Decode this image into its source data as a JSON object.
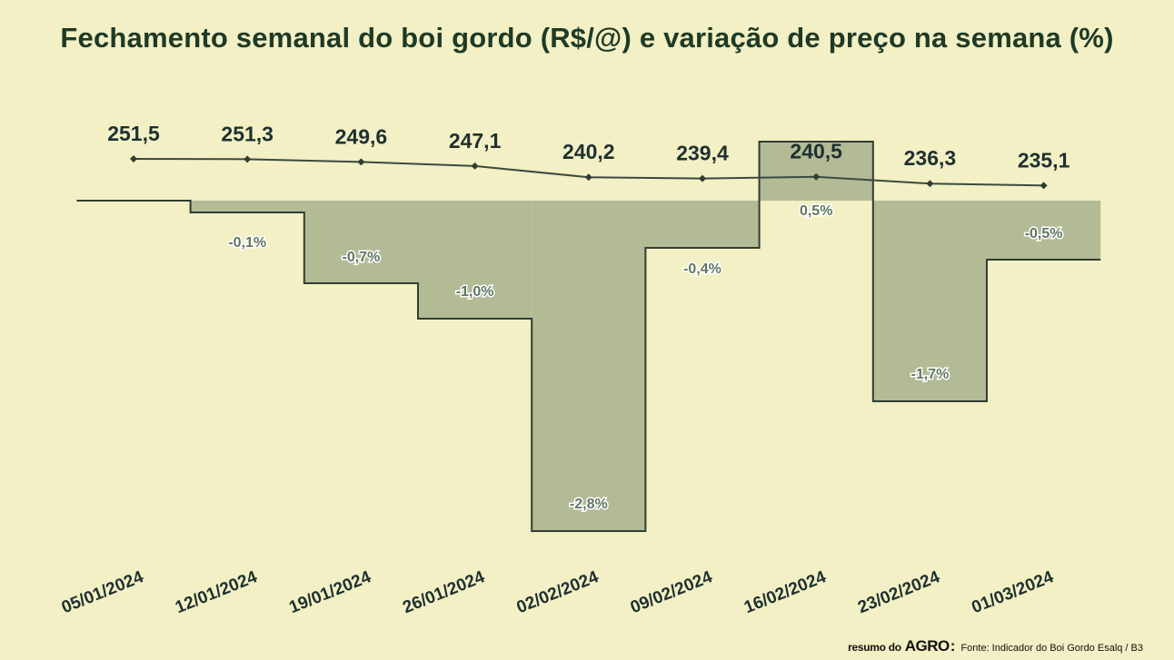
{
  "title": "Fechamento semanal do boi gordo (R$/@) e variação de preço na semana (%)",
  "footer": {
    "brand_small": "resumo do",
    "brand_big": "AGRO",
    "brand_colon": ":",
    "source": "Fonte: Indicador do Boi Gordo Esalq / B3"
  },
  "colors": {
    "background": "#f2f0c4",
    "variation_fill": "#b3ba96",
    "line": "#3a4a40",
    "outline": "#2f3d34"
  },
  "chart_data": {
    "type": "line",
    "categories": [
      "05/01/2024",
      "12/01/2024",
      "19/01/2024",
      "26/01/2024",
      "02/02/2024",
      "09/02/2024",
      "16/02/2024",
      "23/02/2024",
      "01/03/2024"
    ],
    "series": [
      {
        "type": "line",
        "values": [
          251.5,
          251.3,
          249.6,
          247.1,
          240.2,
          239.4,
          240.5,
          236.3,
          235.1
        ],
        "labels": [
          "251,5",
          "251,3",
          "249,6",
          "247,1",
          "240,2",
          "239,4",
          "240,5",
          "236,3",
          "235,1"
        ]
      },
      {
        "type": "step-area",
        "values": [
          0.0,
          -0.1,
          -0.7,
          -1.0,
          -2.8,
          -0.4,
          0.5,
          -1.7,
          -0.5
        ],
        "labels": [
          "",
          "-0,1%",
          "-0,7%",
          "-1,0%",
          "-2,8%",
          "-0,4%",
          "0,5%",
          "-1,7%",
          "-0,5%"
        ]
      }
    ],
    "grid": false,
    "legend": "none"
  }
}
